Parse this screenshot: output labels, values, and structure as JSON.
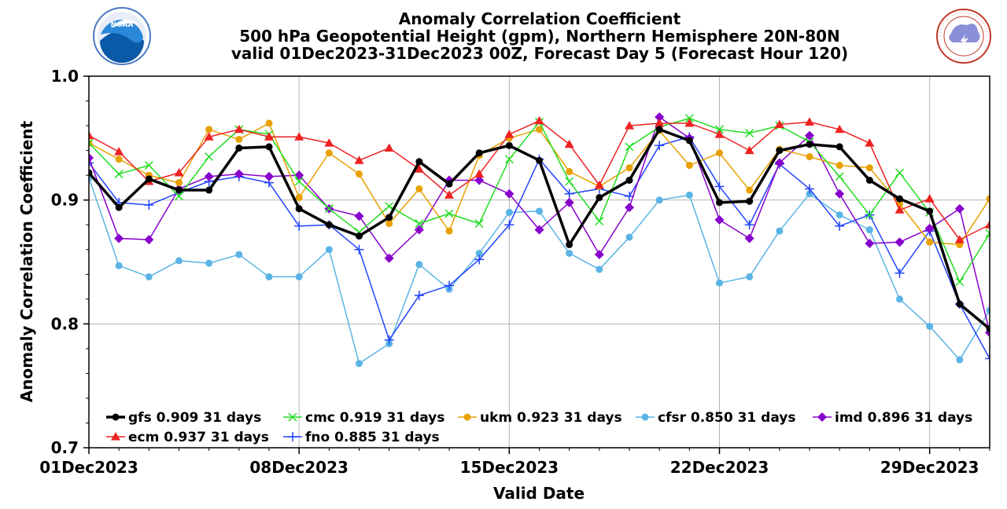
{
  "chart_data": {
    "type": "line",
    "title": [
      "Anomaly Correlation Coefficient",
      "500 hPa Geopotential Height (gpm), Northern Hemisphere 20N-80N",
      "valid 01Dec2023-31Dec2023 00Z, Forecast Day 5 (Forecast Hour 120)"
    ],
    "xlabel": "Valid Date",
    "ylabel": "Anomaly Correlation Coefficient",
    "ylim": [
      0.7,
      1.0
    ],
    "yticks": [
      "0.7",
      "0.8",
      "0.9",
      "1.0"
    ],
    "xlim": [
      1,
      31
    ],
    "xticks": [
      {
        "day": 1,
        "label": "01Dec2023"
      },
      {
        "day": 8,
        "label": "08Dec2023"
      },
      {
        "day": 15,
        "label": "15Dec2023"
      },
      {
        "day": 22,
        "label": "22Dec2023"
      },
      {
        "day": 29,
        "label": "29Dec2023"
      }
    ],
    "x": [
      1,
      2,
      3,
      4,
      5,
      6,
      7,
      8,
      9,
      10,
      11,
      12,
      13,
      14,
      15,
      16,
      17,
      18,
      19,
      20,
      21,
      22,
      23,
      24,
      25,
      26,
      27,
      28,
      29,
      30,
      31
    ],
    "series": [
      {
        "name": "gfs",
        "legend": "gfs 0.909 31 days",
        "color": "#000000",
        "marker": "circle",
        "width": 3.5,
        "values": [
          0.922,
          0.894,
          0.917,
          0.908,
          0.908,
          0.942,
          0.943,
          0.893,
          0.88,
          0.871,
          0.886,
          0.931,
          0.913,
          0.938,
          0.944,
          0.932,
          0.864,
          0.902,
          0.916,
          0.957,
          0.948,
          0.898,
          0.899,
          0.94,
          0.945,
          0.943,
          0.916,
          0.901,
          0.891,
          0.816,
          0.796
        ]
      },
      {
        "name": "cmc",
        "legend": "cmc 0.919 31 days",
        "color": "#22dd22",
        "marker": "x",
        "width": 1.5,
        "values": [
          0.946,
          0.921,
          0.928,
          0.903,
          0.935,
          0.957,
          0.953,
          0.915,
          0.893,
          0.874,
          0.895,
          0.881,
          0.889,
          0.881,
          0.933,
          0.963,
          0.915,
          0.883,
          0.943,
          0.959,
          0.966,
          0.957,
          0.954,
          0.96,
          0.947,
          0.919,
          0.888,
          0.922,
          0.89,
          0.834,
          0.873
        ]
      },
      {
        "name": "ukm",
        "legend": "ukm 0.923 31 days",
        "color": "#e8a000",
        "marker": "circle",
        "width": 1.5,
        "values": [
          0.946,
          0.933,
          0.92,
          0.914,
          0.957,
          0.949,
          0.962,
          0.902,
          0.938,
          0.921,
          0.881,
          0.909,
          0.875,
          0.936,
          0.95,
          0.957,
          0.923,
          0.911,
          0.926,
          0.956,
          0.928,
          0.938,
          0.908,
          0.941,
          0.935,
          0.928,
          0.926,
          0.897,
          0.866,
          0.864,
          0.901
        ]
      },
      {
        "name": "cfsr",
        "legend": "cfsr 0.850 31 days",
        "color": "#5ab4e5",
        "marker": "circle",
        "width": 1.5,
        "values": [
          0.918,
          0.847,
          0.838,
          0.851,
          0.849,
          0.856,
          0.838,
          0.838,
          0.86,
          0.768,
          0.784,
          0.848,
          0.828,
          0.857,
          0.89,
          0.891,
          0.857,
          0.844,
          0.87,
          0.9,
          0.904,
          0.833,
          0.838,
          0.875,
          0.905,
          0.888,
          0.876,
          0.82,
          0.798,
          0.771,
          0.811
        ]
      },
      {
        "name": "imd",
        "legend": "imd 0.896 31 days",
        "color": "#8800cc",
        "marker": "diamond",
        "width": 1.5,
        "values": [
          0.934,
          0.869,
          0.868,
          0.909,
          0.919,
          0.921,
          0.919,
          0.92,
          0.893,
          0.887,
          0.853,
          0.876,
          0.916,
          0.916,
          0.905,
          0.876,
          0.898,
          0.856,
          0.894,
          0.967,
          0.95,
          0.884,
          0.869,
          0.93,
          0.952,
          0.905,
          0.865,
          0.866,
          0.877,
          0.893,
          0.793
        ]
      },
      {
        "name": "ecm",
        "legend": "ecm 0.937 31 days",
        "color": "#ee2222",
        "marker": "triangle",
        "width": 1.5,
        "values": [
          0.952,
          0.939,
          0.915,
          0.922,
          0.951,
          0.957,
          0.951,
          0.951,
          0.946,
          0.932,
          0.942,
          0.925,
          0.904,
          0.921,
          0.953,
          0.964,
          0.945,
          0.912,
          0.96,
          0.962,
          0.962,
          0.953,
          0.94,
          0.961,
          0.963,
          0.957,
          0.946,
          0.892,
          0.901,
          0.868,
          0.88
        ]
      },
      {
        "name": "fno",
        "legend": "fno 0.885 31 days",
        "color": "#2244ff",
        "marker": "plus",
        "width": 1.5,
        "values": [
          0.93,
          0.898,
          0.896,
          0.906,
          0.915,
          0.919,
          0.914,
          0.879,
          0.88,
          0.86,
          0.787,
          0.823,
          0.831,
          0.852,
          0.88,
          0.933,
          0.905,
          0.909,
          0.903,
          0.944,
          0.951,
          0.911,
          0.88,
          0.929,
          0.909,
          0.879,
          0.888,
          0.841,
          0.875,
          0.816,
          0.772
        ]
      }
    ],
    "draw_order": [
      "cfsr",
      "fno",
      "imd",
      "ukm",
      "cmc",
      "ecm",
      "gfs"
    ],
    "legend_rows": [
      [
        "gfs",
        "cmc",
        "ukm",
        "cfsr",
        "imd"
      ],
      [
        "ecm",
        "fno"
      ]
    ],
    "legend_placement": "bottom-left inside plot",
    "grid": true
  },
  "logos": {
    "left": {
      "name": "NOAA",
      "text": "NOAA"
    },
    "right": {
      "name": "National Weather Service"
    }
  }
}
